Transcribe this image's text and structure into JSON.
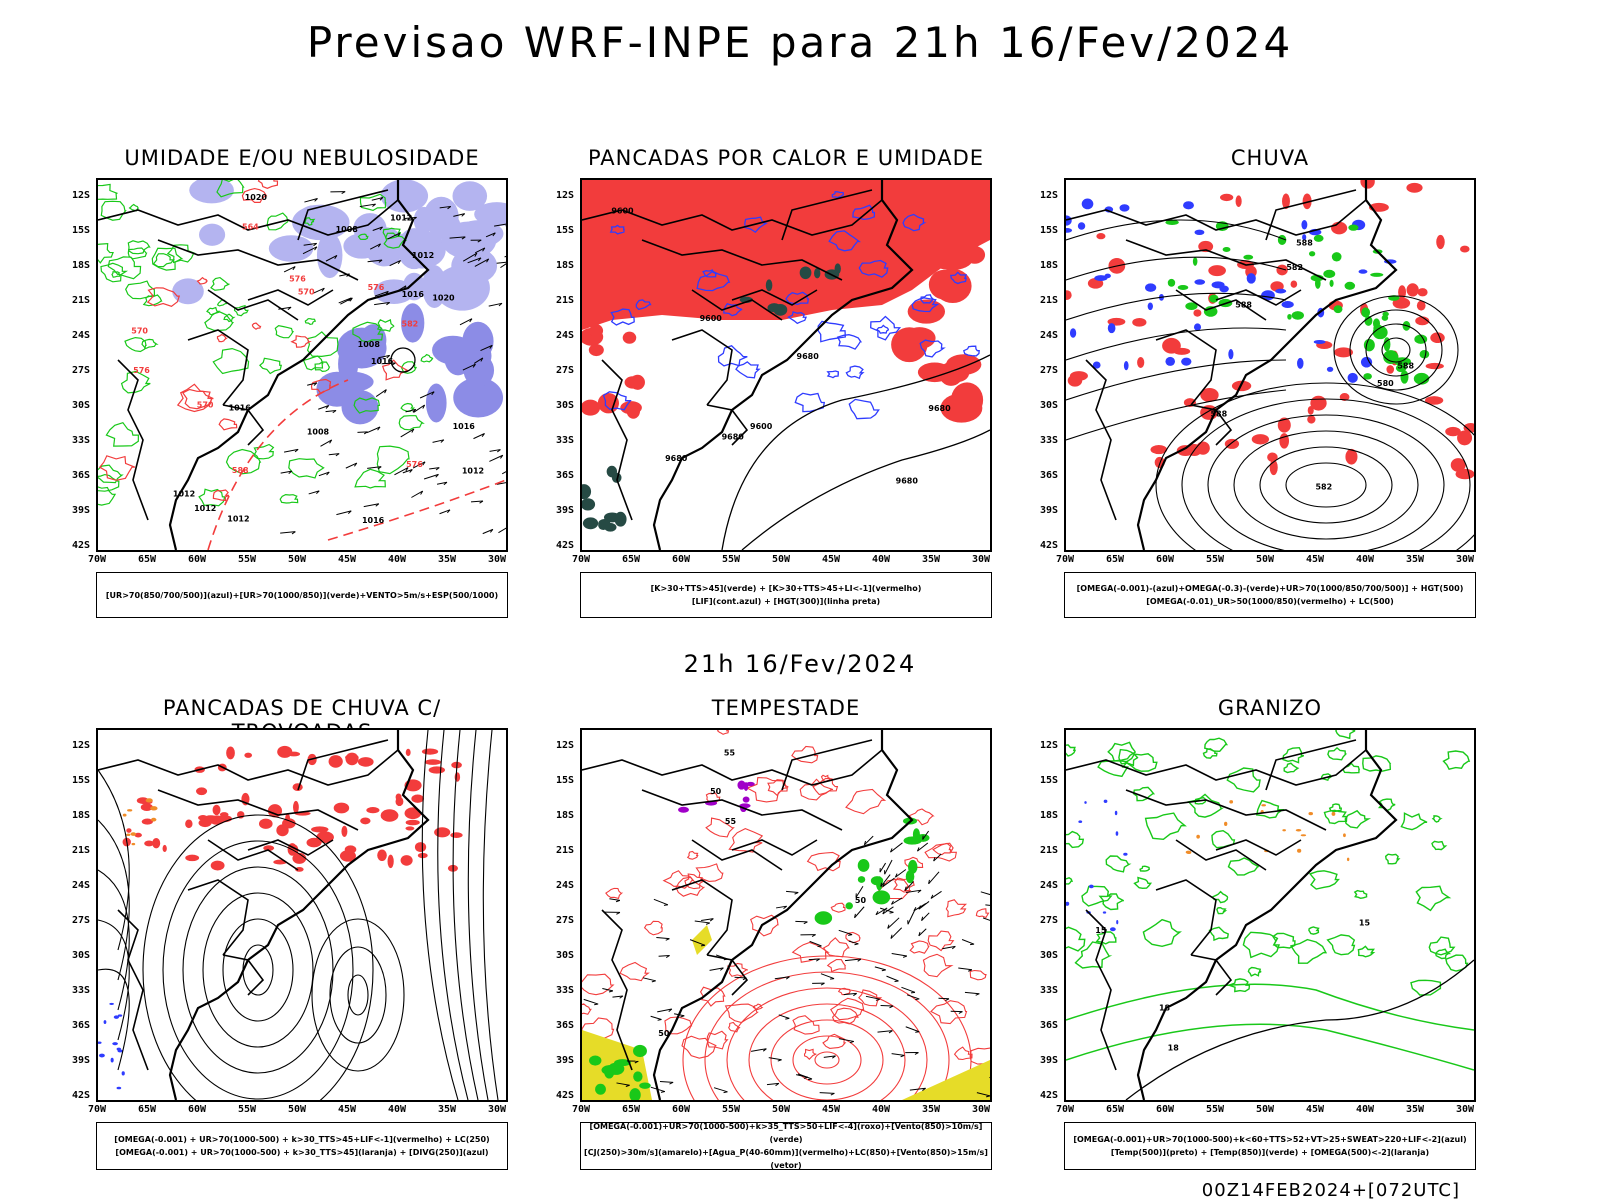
{
  "header": {
    "title": "Previsao WRF-INPE  para 21h 16/Fev/2024"
  },
  "middle_time": "21h 16/Fev/2024",
  "footer_run": "00Z14FEB2024+[072UTC]",
  "axes": {
    "lat_labels": [
      "12S",
      "15S",
      "18S",
      "21S",
      "24S",
      "27S",
      "30S",
      "33S",
      "36S",
      "39S",
      "42S"
    ],
    "lon_labels": [
      "70W",
      "65W",
      "60W",
      "55W",
      "50W",
      "45W",
      "40W",
      "35W",
      "30W"
    ]
  },
  "panels": [
    {
      "id": "umidade",
      "title": "UMIDADE E/OU NEBULOSIDADE",
      "legend": [
        "[UR>70(850/700/500)](azul)+[UR>70(1000/850)](verde)+VENTO>5m/s+ESP(500/1000)"
      ]
    },
    {
      "id": "pancadas-calor",
      "title": "PANCADAS POR CALOR E UMIDADE",
      "legend": [
        "[K>30+TTS>45](verde) + [K>30+TTS>45+LI<-1](vermelho)",
        "[LIF](cont.azul) + [HGT(300)](linha preta)"
      ]
    },
    {
      "id": "chuva",
      "title": "CHUVA",
      "legend": [
        "[OMEGA(-0.001)-(azul)+OMEGA(-0.3)-(verde)+UR>70(1000/850/700/500)] + HGT(500)",
        "[OMEGA(-0.01)_UR>50(1000/850)(vermelho) + LC(500)"
      ]
    },
    {
      "id": "pancadas-trovoadas",
      "title": "PANCADAS DE CHUVA C/ TROVOADAS",
      "legend": [
        "[OMEGA(-0.001) + UR>70(1000-500) + k>30_TTS>45+LIF<-1](vermelho) + LC(250)",
        "[OMEGA(-0.001) + UR>70(1000-500) + k>30_TTS>45](laranja) + [DIVG(250)](azul)"
      ]
    },
    {
      "id": "tempestade",
      "title": "TEMPESTADE",
      "legend": [
        "[OMEGA(-0.001)+UR>70(1000-500)+k>35_TTS>50+LIF<-4](roxo)+[Vento(850)>10m/s](verde)",
        "[CJ(250)>30m/s](amarelo)+[Agua_P(40-60mm)](vermelho)+LC(850)+[Vento(850)>15m/s](vetor)"
      ]
    },
    {
      "id": "granizo",
      "title": "GRANIZO",
      "legend": [
        "[OMEGA(-0.001)+UR>70(1000-500)+k<60+TTS>52+VT>25+SWEAT>220+LIF<-2](azul)",
        "[Temp(500)](preto) + [Temp(850)](verde) + [OMEGA(500)<-2](laranja)"
      ]
    }
  ],
  "map_labels": {
    "umidade": [
      "1008",
      "1012",
      "1016",
      "1016",
      "1008",
      "1012",
      "1016",
      "1012",
      "1016",
      "1020",
      "1012",
      "1016",
      "1012",
      "1008",
      "1012",
      "1020",
      "576",
      "576",
      "576",
      "570",
      "570",
      "576",
      "582",
      "588",
      "564",
      "570"
    ],
    "pancadas-calor": [
      "9680",
      "9680",
      "9680",
      "9600",
      "9680",
      "9680",
      "9600",
      "9600"
    ],
    "chuva": [
      "582",
      "582",
      "588",
      "588",
      "588",
      "588",
      "580"
    ],
    "tempestade": [
      "50",
      "55",
      "50",
      "50",
      "55"
    ],
    "granizo": [
      "18",
      "15",
      "15",
      "18"
    ]
  },
  "colors": {
    "black": "#000000",
    "blue": "#2f3cff",
    "green": "#19c819",
    "red": "#f23c3c",
    "lavender": "#b4b4f0",
    "lavender_dark": "#8c8ce6",
    "dark_teal": "#264a44",
    "purple": "#a000c8",
    "yellow": "#e6dc28",
    "orange": "#f08c28"
  }
}
